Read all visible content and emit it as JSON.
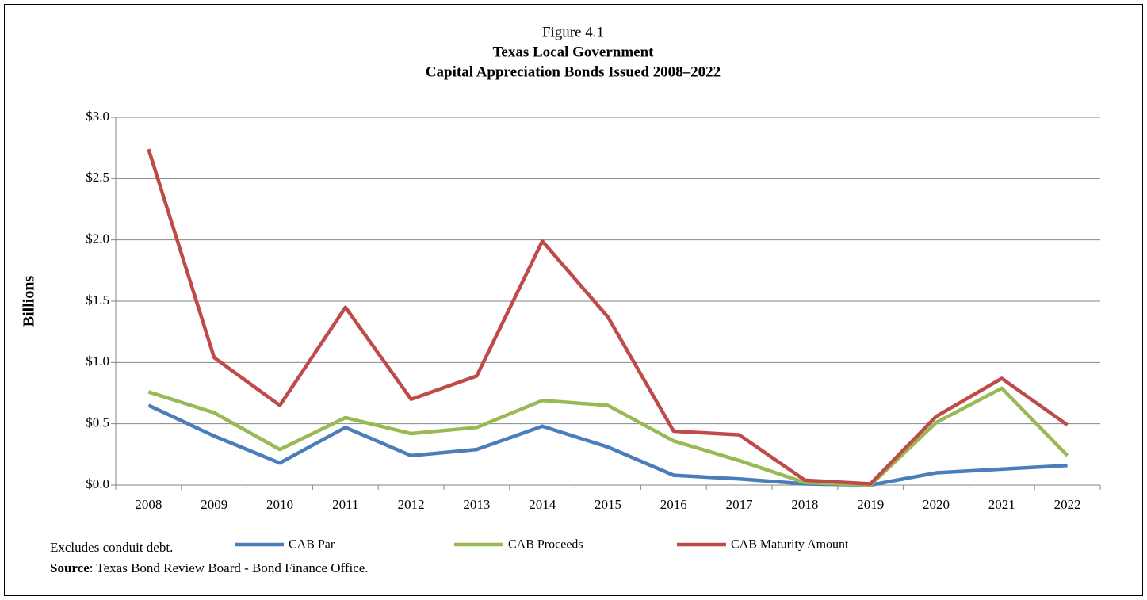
{
  "chart_data": {
    "type": "line",
    "figure_label": "Figure 4.1",
    "title": "Texas Local Government",
    "subtitle": "Capital Appreciation Bonds Issued 2008–2022",
    "y_label": "Billions",
    "categories": [
      "2008",
      "2009",
      "2010",
      "2011",
      "2012",
      "2013",
      "2014",
      "2015",
      "2016",
      "2017",
      "2018",
      "2019",
      "2020",
      "2021",
      "2022"
    ],
    "series": [
      {
        "name": "CAB Par",
        "color": "#4a7ebb",
        "values": [
          0.65,
          0.4,
          0.18,
          0.47,
          0.24,
          0.29,
          0.48,
          0.31,
          0.08,
          0.05,
          0.01,
          0.0,
          0.1,
          0.13,
          0.16
        ]
      },
      {
        "name": "CAB Proceeds",
        "color": "#98b954",
        "values": [
          0.76,
          0.59,
          0.29,
          0.55,
          0.42,
          0.47,
          0.69,
          0.65,
          0.36,
          0.2,
          0.02,
          0.0,
          0.51,
          0.79,
          0.24
        ]
      },
      {
        "name": "CAB Maturity Amount",
        "color": "#be4b48",
        "values": [
          2.74,
          1.04,
          0.65,
          1.45,
          0.7,
          0.89,
          1.99,
          1.37,
          0.44,
          0.41,
          0.04,
          0.01,
          0.56,
          0.87,
          0.49
        ]
      }
    ],
    "ylim": [
      0,
      3
    ],
    "yticks": [
      {
        "value": 0,
        "label": "$0.0"
      },
      {
        "value": 0.5,
        "label": "$0.5"
      },
      {
        "value": 1,
        "label": "$1.0"
      },
      {
        "value": 1.5,
        "label": "$1.5"
      },
      {
        "value": 2,
        "label": "$2.0"
      },
      {
        "value": 2.5,
        "label": "$2.5"
      },
      {
        "value": 3,
        "label": "$3.0"
      }
    ],
    "grid": true,
    "legend": "bottom",
    "note": "Excludes conduit debt.",
    "source_label": "Source",
    "source_text": ": Texas Bond Review Board - Bond Finance Office."
  }
}
